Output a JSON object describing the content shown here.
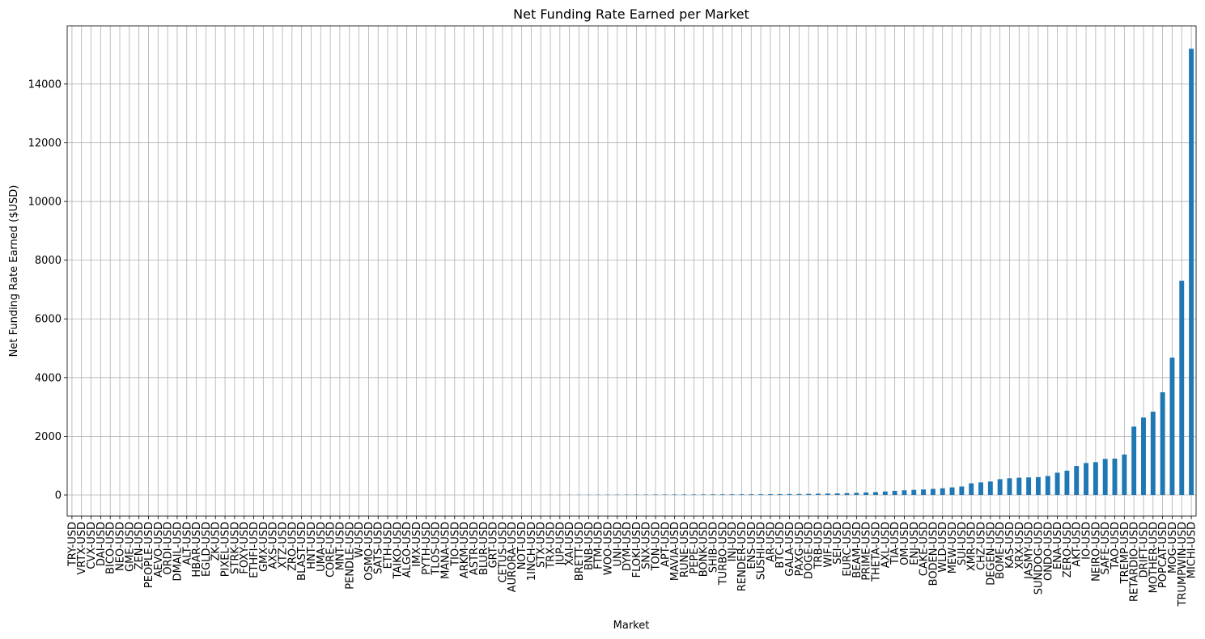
{
  "chart_data": {
    "type": "bar",
    "title": "Net Funding Rate Earned per Market",
    "x_label": "Market",
    "y_label": "Net Funding Rate Earned ($USD)",
    "categories": [
      "TRY-USD",
      "VRTX-USD",
      "CVX-USD",
      "DAI-USD",
      "BICO-USD",
      "NEO-USD",
      "GME-USD",
      "ZEN-USD",
      "PEOPLE-USD",
      "AEVO-USD",
      "ORDI-USD",
      "DMAIL-USD",
      "ALT-USD",
      "HBAR-USD",
      "EGLD-USD",
      "ZK-USD",
      "PIXEL-USD",
      "STRK-USD",
      "FOXY-USD",
      "ETHFI-USD",
      "GMX-USD",
      "AXS-USD",
      "XTZ-USD",
      "ZRO-USD",
      "BLAST-USD",
      "HNT-USD",
      "UMA-USD",
      "CORE-USD",
      "MNT-USD",
      "PENDLE-USD",
      "W-USD",
      "OSMO-USD",
      "SATS-USD",
      "ETH-USD",
      "TAIKO-USD",
      "ALGO-USD",
      "IMX-USD",
      "PYTH-USD",
      "TLOS-USD",
      "MANA-USD",
      "TIO-USD",
      "ARKM-USD",
      "ASTR-USD",
      "BLUR-USD",
      "GRT-USD",
      "CETUS-USD",
      "AURORA-USD",
      "NOT-USD",
      "1INCH-USD",
      "STX-USD",
      "TRX-USD",
      "JUP-USD",
      "XAI-USD",
      "BRETT-USD",
      "BNB-USD",
      "FTM-USD",
      "WOO-USD",
      "UNI-USD",
      "DYM-USD",
      "FLOKI-USD",
      "SNX-USD",
      "TON-USD",
      "APT-USD",
      "MAVIA-USD",
      "RUNE-USD",
      "PEPE-USD",
      "BONK-USD",
      "SHIB-USD",
      "TURBO-USD",
      "INJ-USD",
      "RENDER-USD",
      "ENS-USD",
      "SUSHI-USD",
      "AR-USD",
      "BTC-USD",
      "GALA-USD",
      "PAXG-USD",
      "DOGE-USD",
      "TRB-USD",
      "WIF-USD",
      "SEI-USD",
      "EURC-USD",
      "BEAM-USD",
      "PRIME-USD",
      "THETA-USD",
      "AXL-USD",
      "TIA-USD",
      "OM-USD",
      "ENJ-USD",
      "CAKE-USD",
      "BODEN-USD",
      "WLD-USD",
      "MEW-USD",
      "SUI-USD",
      "XMR-USD",
      "CHZ-USD",
      "DEGEN-USD",
      "BOME-USD",
      "KAS-USD",
      "XRX-USD",
      "JASMY-USD",
      "SUNDOG-USD",
      "ONDO-USD",
      "ENA-USD",
      "ZERO-USD",
      "AKT-USD",
      "IO-USD",
      "NEIRO-USD",
      "SAFE-USD",
      "TAO-USD",
      "TREMP-USD",
      "RETARDIO-USD",
      "DRIFT-USD",
      "MOTHER-USD",
      "POPCAT-USD",
      "MOG-USD",
      "TRUMPWIN-USD",
      "MICHI-USD"
    ],
    "values": [
      0,
      0,
      0,
      0,
      0,
      0,
      0,
      0,
      0,
      0,
      0,
      0,
      0,
      0,
      0,
      0,
      0,
      0,
      0,
      0,
      0,
      0,
      0,
      0,
      0,
      0,
      0,
      0,
      0,
      0,
      0,
      0,
      0,
      0,
      0,
      0,
      0,
      0,
      0,
      0,
      0,
      0,
      0,
      0,
      0,
      0,
      0,
      0,
      0,
      0,
      5,
      5,
      6,
      7,
      8,
      9,
      10,
      11,
      12,
      13,
      14,
      15,
      16,
      17,
      18,
      19,
      20,
      21,
      22,
      23,
      24,
      25,
      26,
      28,
      30,
      32,
      35,
      40,
      45,
      50,
      55,
      65,
      75,
      90,
      100,
      120,
      140,
      160,
      175,
      190,
      210,
      230,
      260,
      290,
      400,
      430,
      460,
      540,
      570,
      590,
      600,
      610,
      650,
      760,
      830,
      990,
      1090,
      1120,
      1230,
      1240,
      1380,
      2330,
      2640,
      2840,
      3500,
      4680,
      7300,
      15200
    ],
    "color": "#1f77b4",
    "ylim": [
      -716,
      15980
    ],
    "yticks": [
      0,
      2000,
      4000,
      6000,
      8000,
      10000,
      12000,
      14000
    ],
    "grid": true
  }
}
